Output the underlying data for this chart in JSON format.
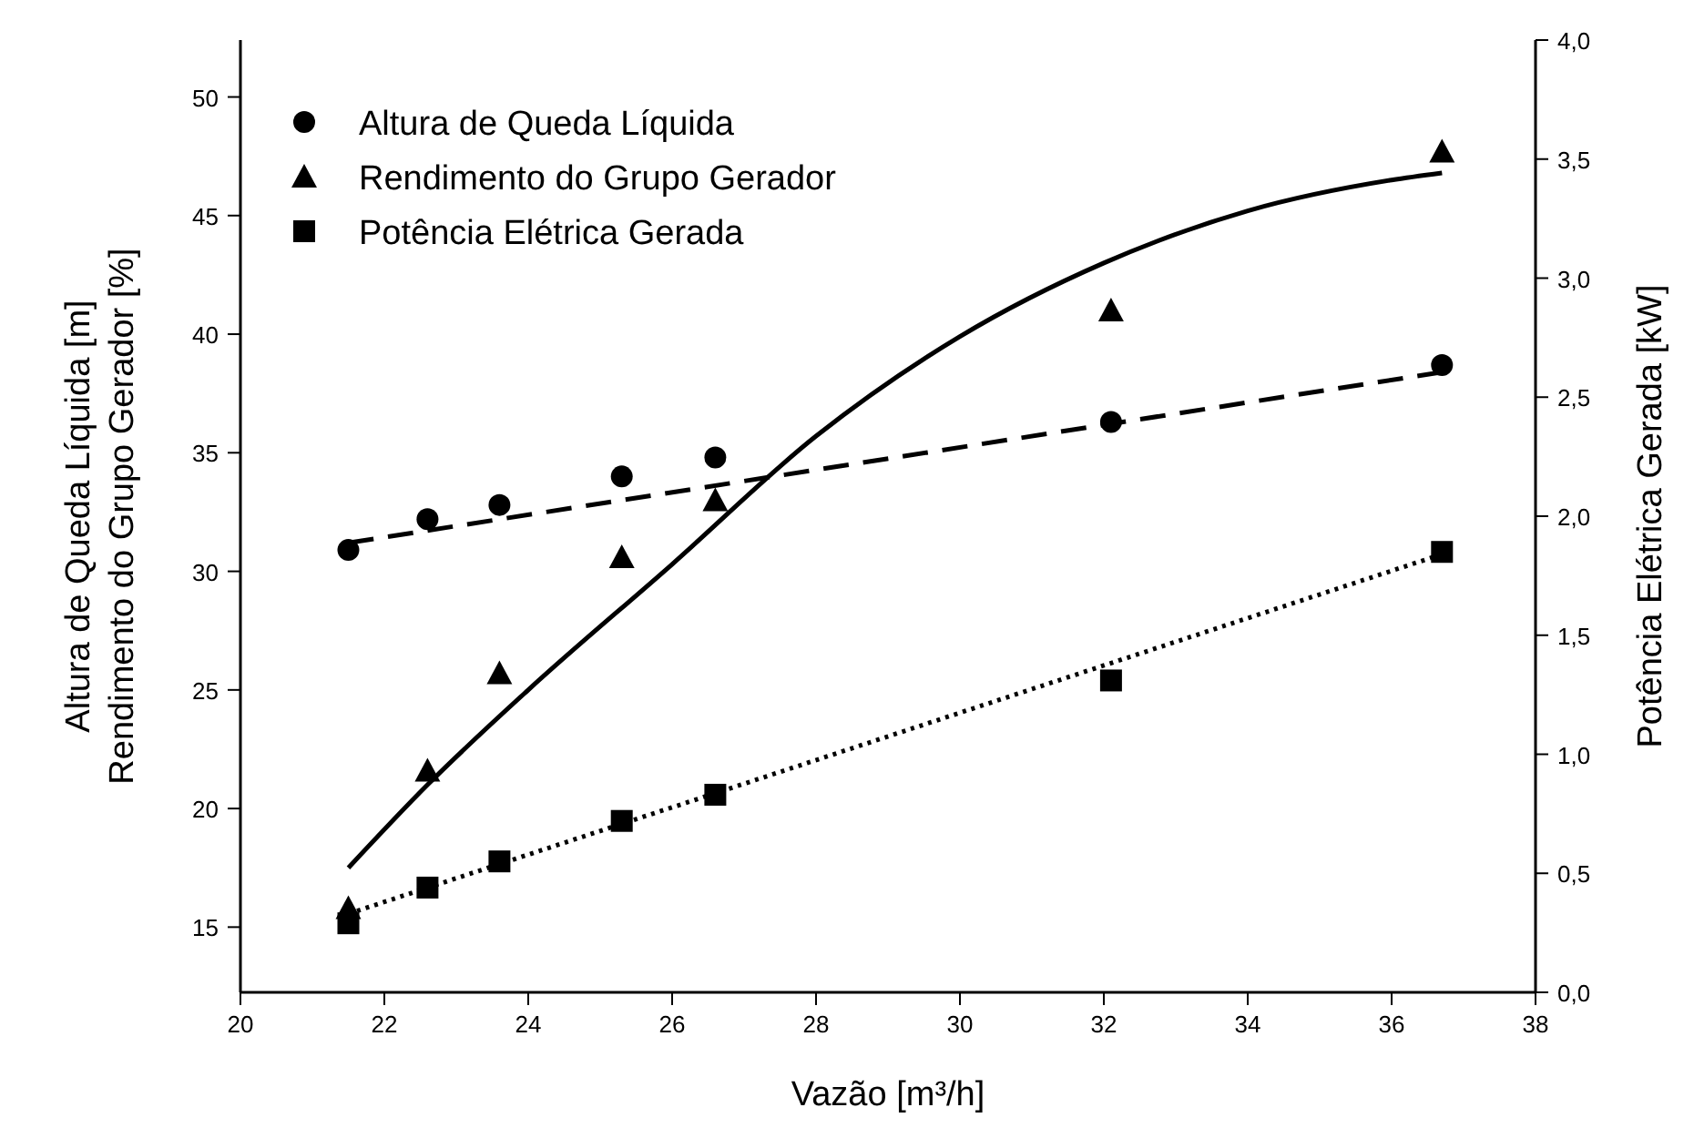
{
  "chart_data": {
    "type": "scatter",
    "xlabel": "Vazão [m³/h]",
    "ylabel": "Altura de Queda Líquida [m]\nRendimento do Grupo Gerador [%]",
    "y2label": "Potência Elétrica Gerada [kW]",
    "xlim": [
      20,
      38
    ],
    "xticks": [
      20,
      22,
      24,
      26,
      28,
      30,
      32,
      34,
      36,
      38
    ],
    "ylim": [
      12.25,
      52.4
    ],
    "yticks": [
      15,
      20,
      25,
      30,
      35,
      40,
      45,
      50
    ],
    "y2lim": [
      0,
      4
    ],
    "y2ticks": [
      {
        "value": 0,
        "label": "0,0"
      },
      {
        "value": 0.5,
        "label": "0,5"
      },
      {
        "value": 1,
        "label": "1,0"
      },
      {
        "value": 1.5,
        "label": "1,5"
      },
      {
        "value": 2,
        "label": "2,0"
      },
      {
        "value": 2.5,
        "label": "2,5"
      },
      {
        "value": 3,
        "label": "3,0"
      },
      {
        "value": 3.5,
        "label": "3,5"
      },
      {
        "value": 4,
        "label": "4,0"
      }
    ],
    "grid": false,
    "legend": "top left",
    "series": [
      {
        "name": "Altura de Queda Líquida",
        "marker": "circle",
        "color": "#000000",
        "x": [
          21.5,
          22.6,
          23.6,
          25.3,
          26.6,
          32.1,
          36.7
        ],
        "values": [
          30.9,
          32.2,
          32.8,
          34.0,
          34.8,
          36.3,
          38.7
        ]
      },
      {
        "name": "Rendimento do Grupo Gerador",
        "marker": "triangle",
        "color": "#000000",
        "x": [
          21.5,
          22.6,
          23.6,
          25.3,
          26.6,
          32.1,
          36.7
        ],
        "values": [
          15.8,
          21.6,
          25.7,
          30.6,
          33.0,
          41.0,
          47.7
        ]
      },
      {
        "name": "Potência Elétrica Gerada",
        "marker": "square",
        "color": "#000000",
        "axis": "y2",
        "x": [
          21.5,
          22.6,
          23.6,
          25.3,
          26.6,
          32.1,
          36.7
        ],
        "values": [
          0.29,
          0.44,
          0.55,
          0.72,
          0.83,
          1.31,
          1.85
        ]
      },
      {
        "type": "line",
        "line_style": "dashed",
        "marker": "none",
        "color": "#000000",
        "x": [
          21.5,
          36.7
        ],
        "values": [
          31.2,
          38.4
        ]
      },
      {
        "type": "line",
        "line_style": "solid",
        "marker": "none",
        "color": "#000000",
        "x": [
          21.5,
          22.6,
          24,
          26,
          28,
          30,
          32,
          34,
          36,
          36.7
        ],
        "values": [
          17.5,
          21.0,
          25.0,
          30.3,
          35.7,
          39.9,
          43.0,
          45.2,
          46.5,
          46.8
        ]
      },
      {
        "type": "line",
        "line_style": "dotted",
        "marker": "none",
        "color": "#000000",
        "axis": "y2",
        "x": [
          21.5,
          36.7
        ],
        "values": [
          0.33,
          1.84
        ]
      }
    ]
  }
}
